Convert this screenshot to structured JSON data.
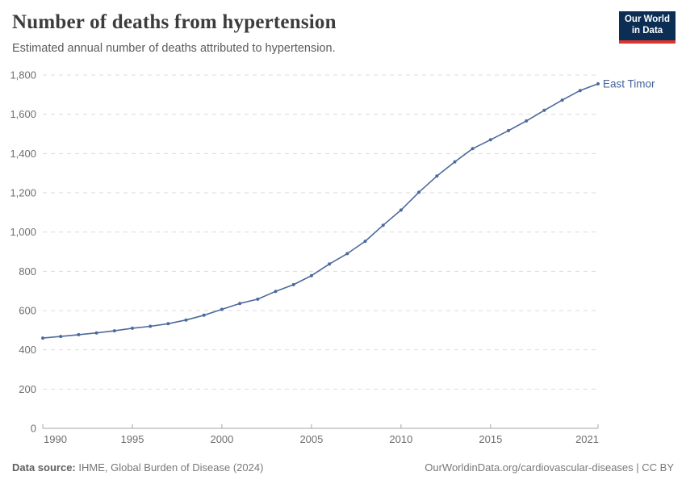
{
  "header": {
    "title": "Number of deaths from hypertension",
    "subtitle": "Estimated annual number of deaths attributed to hypertension.",
    "logo": {
      "line1": "Our World",
      "line2": "in Data"
    }
  },
  "colors": {
    "line": "#4c6a9c",
    "end_label": "#44639b",
    "grid": "#dbdbdb",
    "axis": "#a5a5a5",
    "tick_text": "#6e6e6e",
    "logo_bg": "#0d2e54",
    "logo_bar": "#dc352c"
  },
  "chart_data": {
    "type": "line",
    "title": "Number of deaths from hypertension",
    "subtitle": "Estimated annual number of deaths attributed to hypertension.",
    "xlabel": "",
    "ylabel": "",
    "xlim": [
      1990,
      2021
    ],
    "ylim": [
      0,
      1800
    ],
    "x_ticks": [
      1990,
      1995,
      2000,
      2005,
      2010,
      2015,
      2021
    ],
    "y_ticks": [
      0,
      200,
      400,
      600,
      800,
      1000,
      1200,
      1400,
      1600,
      1800
    ],
    "grid": "horizontal-dashed",
    "legend_position": "end-of-line",
    "x": [
      1990,
      1991,
      1992,
      1993,
      1994,
      1995,
      1996,
      1997,
      1998,
      1999,
      2000,
      2001,
      2002,
      2003,
      2004,
      2005,
      2006,
      2007,
      2008,
      2009,
      2010,
      2011,
      2012,
      2013,
      2014,
      2015,
      2016,
      2017,
      2018,
      2019,
      2020,
      2021
    ],
    "series": [
      {
        "name": "East Timor",
        "values": [
          460,
          468,
          477,
          486,
          497,
          510,
          520,
          533,
          552,
          576,
          606,
          636,
          658,
          698,
          732,
          778,
          837,
          890,
          953,
          1035,
          1112,
          1203,
          1285,
          1358,
          1425,
          1470,
          1517,
          1566,
          1620,
          1672,
          1721,
          1755
        ]
      }
    ]
  },
  "footer": {
    "source_label": "Data source:",
    "source_text": " IHME, Global Burden of Disease (2024)",
    "credit": "OurWorldinData.org/cardiovascular-diseases | CC BY"
  }
}
